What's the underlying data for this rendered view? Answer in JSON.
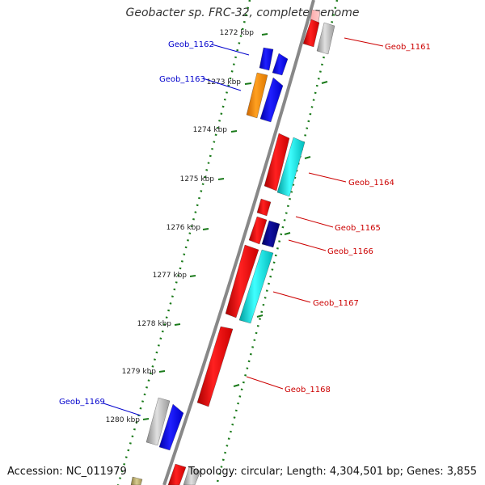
{
  "header": {
    "title": "Geobacter sp. FRC-32, complete genome"
  },
  "footer": {
    "accession": "Accession: NC_011979",
    "summary": "Topology: circular; Length: 4,304,501 bp; Genes: 3,855"
  },
  "scale": {
    "ticks": [
      "1272 kbp",
      "1273 kbp",
      "1274 kbp",
      "1275 kbp",
      "1276 kbp",
      "1277 kbp",
      "1278 kbp",
      "1279 kbp",
      "1280 kbp"
    ]
  },
  "genes": [
    {
      "name": "Geob_1161",
      "strand": "plus",
      "color": "#cc0000"
    },
    {
      "name": "Geob_1162",
      "strand": "minus",
      "color": "#0000cc"
    },
    {
      "name": "Geob_1163",
      "strand": "minus",
      "color": "#0000cc"
    },
    {
      "name": "Geob_1164",
      "strand": "plus",
      "color": "#cc0000"
    },
    {
      "name": "Geob_1165",
      "strand": "plus",
      "color": "#cc0000"
    },
    {
      "name": "Geob_1166",
      "strand": "plus",
      "color": "#cc0000"
    },
    {
      "name": "Geob_1167",
      "strand": "plus",
      "color": "#cc0000"
    },
    {
      "name": "Geob_1168",
      "strand": "plus",
      "color": "#cc0000"
    },
    {
      "name": "Geob_1169",
      "strand": "minus",
      "color": "#0000cc"
    }
  ],
  "colors": {
    "backbone": "#888888",
    "tick": "#1a7a1a",
    "gene_red": "#ff0000",
    "gene_blue": "#0000ff",
    "gene_navy": "#000080",
    "gene_cyan": "#00cccc",
    "gene_orange": "#ff8c00",
    "gene_gray": "#b0b0b0",
    "gene_olive": "#b0a060"
  }
}
